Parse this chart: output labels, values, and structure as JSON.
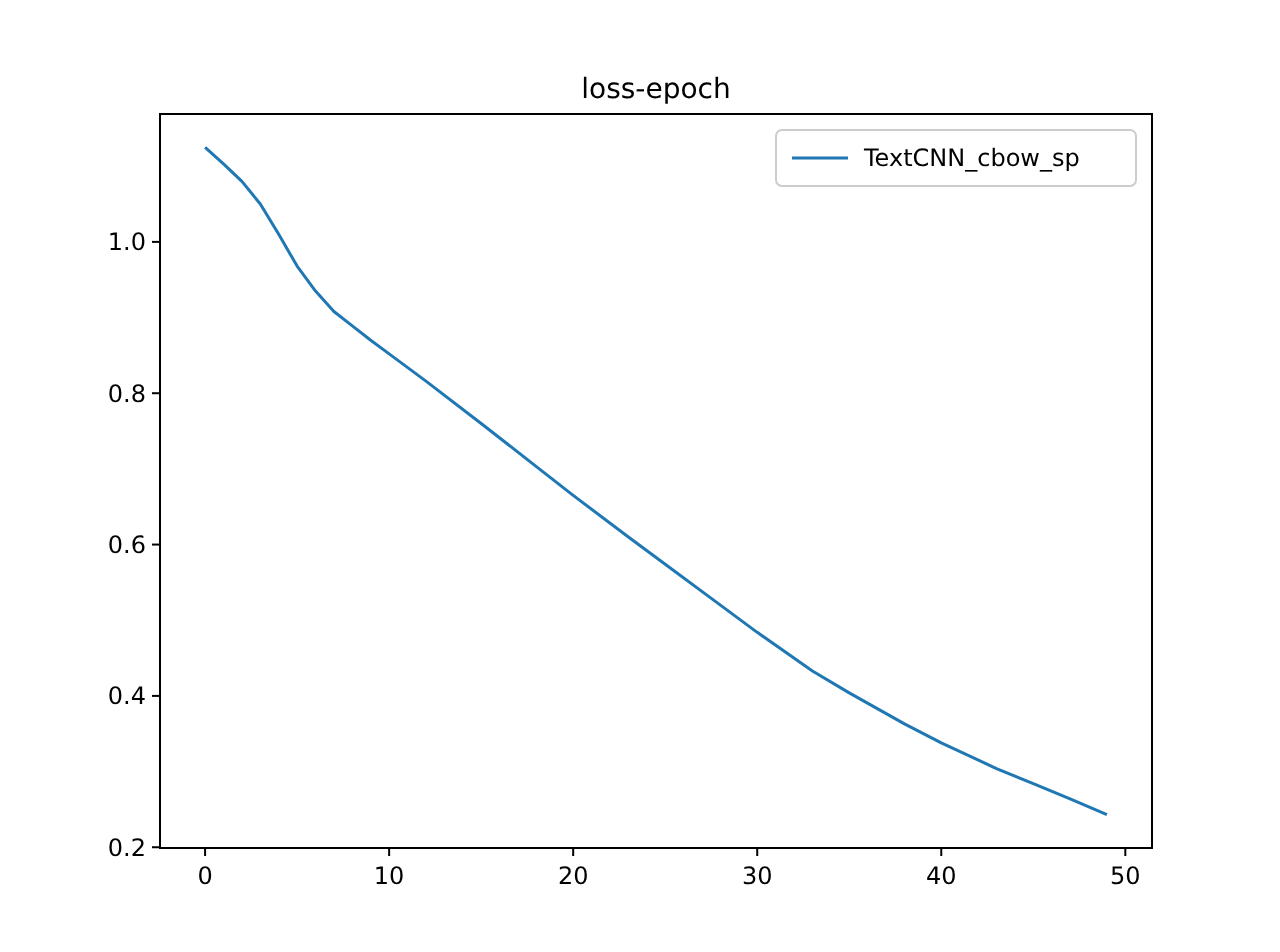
{
  "chart_data": {
    "type": "line",
    "title": "loss-epoch",
    "x": [
      0,
      1,
      2,
      3,
      4,
      5,
      6,
      7,
      8,
      9,
      10,
      12,
      15,
      18,
      20,
      23,
      25,
      28,
      30,
      33,
      35,
      38,
      40,
      43,
      45,
      47,
      49
    ],
    "series": [
      {
        "name": "TextCNN_cbow_sp",
        "color": "#1f77b4",
        "values": [
          1.125,
          1.103,
          1.08,
          1.05,
          1.01,
          0.968,
          0.935,
          0.908,
          0.889,
          0.87,
          0.852,
          0.816,
          0.76,
          0.703,
          0.665,
          0.61,
          0.574,
          0.52,
          0.484,
          0.433,
          0.404,
          0.363,
          0.338,
          0.304,
          0.284,
          0.264,
          0.243
        ]
      }
    ],
    "xlim": [
      -2.45,
      51.45
    ],
    "xticks": [
      0,
      10,
      20,
      30,
      40,
      50
    ],
    "ylim": [
      0.199,
      1.169
    ],
    "yticks": [
      0.2,
      0.4,
      0.6,
      0.8,
      {
        "value": 1,
        "label": "1.0"
      }
    ],
    "legend": "top right",
    "grid": false
  }
}
